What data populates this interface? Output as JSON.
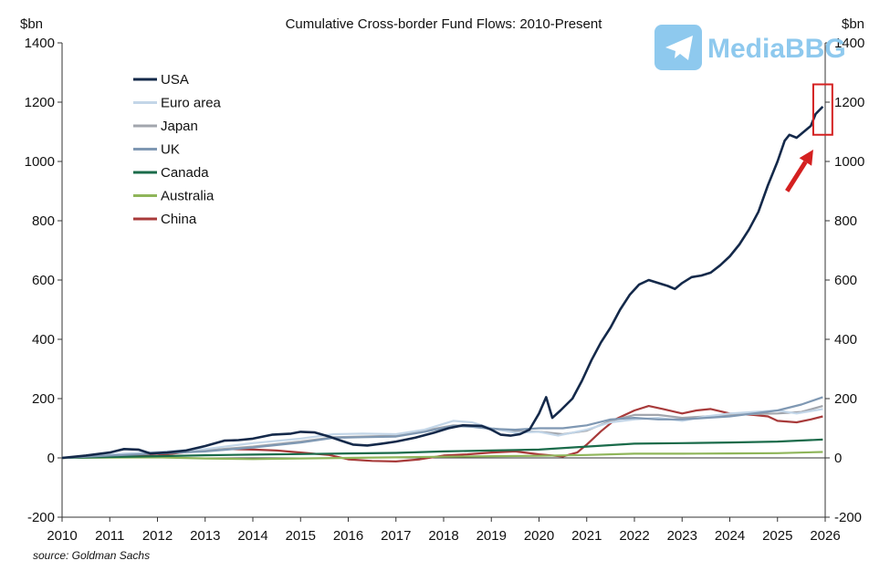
{
  "chart_data": {
    "type": "line",
    "title": "Cumulative Cross-border Fund Flows: 2010-Present",
    "ylabel_left": "$bn",
    "ylabel_right": "$bn",
    "source": "source: Goldman Sachs",
    "xlim": [
      2010,
      2026
    ],
    "ylim": [
      -200,
      1400
    ],
    "x_ticks": [
      "2010",
      "2011",
      "2012",
      "2013",
      "2014",
      "2015",
      "2016",
      "2017",
      "2018",
      "2019",
      "2020",
      "2021",
      "2022",
      "2023",
      "2024",
      "2025",
      "2026"
    ],
    "y_ticks": [
      "-200",
      "0",
      "200",
      "400",
      "600",
      "800",
      "1000",
      "1200",
      "1400"
    ],
    "legend_position": "top-left",
    "series": [
      {
        "name": "USA",
        "color": "#14294a",
        "points": [
          [
            2010,
            0
          ],
          [
            2010.5,
            8
          ],
          [
            2011,
            18
          ],
          [
            2011.3,
            30
          ],
          [
            2011.6,
            28
          ],
          [
            2011.85,
            15
          ],
          [
            2012.2,
            18
          ],
          [
            2012.6,
            25
          ],
          [
            2013,
            40
          ],
          [
            2013.4,
            58
          ],
          [
            2013.7,
            60
          ],
          [
            2014,
            65
          ],
          [
            2014.4,
            78
          ],
          [
            2014.8,
            82
          ],
          [
            2015,
            88
          ],
          [
            2015.3,
            86
          ],
          [
            2015.6,
            72
          ],
          [
            2015.85,
            58
          ],
          [
            2016.1,
            45
          ],
          [
            2016.4,
            42
          ],
          [
            2016.7,
            48
          ],
          [
            2017,
            55
          ],
          [
            2017.4,
            68
          ],
          [
            2017.8,
            85
          ],
          [
            2018.1,
            100
          ],
          [
            2018.4,
            110
          ],
          [
            2018.8,
            108
          ],
          [
            2019,
            95
          ],
          [
            2019.2,
            78
          ],
          [
            2019.4,
            75
          ],
          [
            2019.6,
            80
          ],
          [
            2019.8,
            95
          ],
          [
            2020,
            150
          ],
          [
            2020.15,
            205
          ],
          [
            2020.28,
            135
          ],
          [
            2020.45,
            160
          ],
          [
            2020.7,
            200
          ],
          [
            2020.9,
            260
          ],
          [
            2021.1,
            330
          ],
          [
            2021.3,
            390
          ],
          [
            2021.5,
            440
          ],
          [
            2021.7,
            500
          ],
          [
            2021.9,
            550
          ],
          [
            2022.1,
            585
          ],
          [
            2022.3,
            600
          ],
          [
            2022.5,
            590
          ],
          [
            2022.7,
            580
          ],
          [
            2022.85,
            570
          ],
          [
            2023,
            590
          ],
          [
            2023.2,
            610
          ],
          [
            2023.4,
            615
          ],
          [
            2023.6,
            625
          ],
          [
            2023.8,
            650
          ],
          [
            2024,
            680
          ],
          [
            2024.2,
            720
          ],
          [
            2024.4,
            770
          ],
          [
            2024.6,
            830
          ],
          [
            2024.8,
            920
          ],
          [
            2025,
            1000
          ],
          [
            2025.15,
            1070
          ],
          [
            2025.25,
            1090
          ],
          [
            2025.4,
            1080
          ],
          [
            2025.55,
            1100
          ],
          [
            2025.7,
            1120
          ],
          [
            2025.8,
            1160
          ],
          [
            2025.95,
            1185
          ]
        ]
      },
      {
        "name": "Euro area",
        "color": "#c3d6e8",
        "points": [
          [
            2010,
            0
          ],
          [
            2011,
            12
          ],
          [
            2012,
            20
          ],
          [
            2013,
            30
          ],
          [
            2014,
            50
          ],
          [
            2015,
            65
          ],
          [
            2015.7,
            80
          ],
          [
            2016.3,
            82
          ],
          [
            2017,
            80
          ],
          [
            2017.6,
            95
          ],
          [
            2018.2,
            125
          ],
          [
            2018.6,
            120
          ],
          [
            2019,
            100
          ],
          [
            2019.5,
            85
          ],
          [
            2020,
            88
          ],
          [
            2020.4,
            75
          ],
          [
            2021,
            95
          ],
          [
            2021.5,
            120
          ],
          [
            2022,
            130
          ],
          [
            2022.5,
            135
          ],
          [
            2023,
            125
          ],
          [
            2023.5,
            140
          ],
          [
            2024,
            150
          ],
          [
            2024.5,
            155
          ],
          [
            2025,
            160
          ],
          [
            2025.4,
            150
          ],
          [
            2025.95,
            165
          ]
        ]
      },
      {
        "name": "Japan",
        "color": "#a2a6ad",
        "points": [
          [
            2010,
            0
          ],
          [
            2011,
            10
          ],
          [
            2012,
            18
          ],
          [
            2013,
            25
          ],
          [
            2014,
            38
          ],
          [
            2015,
            55
          ],
          [
            2015.7,
            70
          ],
          [
            2016.3,
            72
          ],
          [
            2017,
            75
          ],
          [
            2017.6,
            92
          ],
          [
            2018.2,
            110
          ],
          [
            2018.6,
            108
          ],
          [
            2019,
            100
          ],
          [
            2019.5,
            90
          ],
          [
            2020,
            88
          ],
          [
            2020.5,
            80
          ],
          [
            2021,
            92
          ],
          [
            2021.5,
            125
          ],
          [
            2022,
            145
          ],
          [
            2022.5,
            145
          ],
          [
            2023,
            135
          ],
          [
            2023.5,
            140
          ],
          [
            2024,
            145
          ],
          [
            2024.5,
            148
          ],
          [
            2025,
            150
          ],
          [
            2025.5,
            155
          ],
          [
            2025.95,
            175
          ]
        ]
      },
      {
        "name": "UK",
        "color": "#7f98b3",
        "points": [
          [
            2010,
            0
          ],
          [
            2011,
            8
          ],
          [
            2012,
            15
          ],
          [
            2013,
            22
          ],
          [
            2014,
            35
          ],
          [
            2015,
            52
          ],
          [
            2015.7,
            68
          ],
          [
            2016.3,
            70
          ],
          [
            2017,
            72
          ],
          [
            2017.6,
            88
          ],
          [
            2018.2,
            108
          ],
          [
            2018.6,
            105
          ],
          [
            2019,
            98
          ],
          [
            2019.5,
            95
          ],
          [
            2020,
            100
          ],
          [
            2020.5,
            100
          ],
          [
            2021,
            110
          ],
          [
            2021.5,
            130
          ],
          [
            2022,
            135
          ],
          [
            2022.5,
            130
          ],
          [
            2023,
            130
          ],
          [
            2023.5,
            135
          ],
          [
            2024,
            140
          ],
          [
            2024.5,
            150
          ],
          [
            2025,
            160
          ],
          [
            2025.5,
            180
          ],
          [
            2025.95,
            205
          ]
        ]
      },
      {
        "name": "Canada",
        "color": "#1a6b4a",
        "points": [
          [
            2010,
            0
          ],
          [
            2011,
            3
          ],
          [
            2012,
            6
          ],
          [
            2013,
            9
          ],
          [
            2014,
            11
          ],
          [
            2015,
            13
          ],
          [
            2016,
            15
          ],
          [
            2017,
            17
          ],
          [
            2018,
            22
          ],
          [
            2019,
            25
          ],
          [
            2020,
            28
          ],
          [
            2021,
            38
          ],
          [
            2022,
            48
          ],
          [
            2023,
            50
          ],
          [
            2024,
            52
          ],
          [
            2025,
            55
          ],
          [
            2025.95,
            62
          ]
        ]
      },
      {
        "name": "Australia",
        "color": "#8fb55a",
        "points": [
          [
            2010,
            0
          ],
          [
            2011,
            1
          ],
          [
            2012,
            2
          ],
          [
            2013,
            -2
          ],
          [
            2014,
            -4
          ],
          [
            2015,
            -2
          ],
          [
            2016,
            0
          ],
          [
            2017,
            2
          ],
          [
            2018,
            4
          ],
          [
            2019,
            6
          ],
          [
            2020,
            7
          ],
          [
            2021,
            10
          ],
          [
            2022,
            14
          ],
          [
            2023,
            14
          ],
          [
            2024,
            15
          ],
          [
            2025,
            16
          ],
          [
            2025.95,
            20
          ]
        ]
      },
      {
        "name": "China",
        "color": "#a83a3a",
        "points": [
          [
            2010,
            0
          ],
          [
            2011,
            5
          ],
          [
            2012,
            8
          ],
          [
            2012.5,
            18
          ],
          [
            2013,
            25
          ],
          [
            2013.5,
            30
          ],
          [
            2014,
            28
          ],
          [
            2014.5,
            25
          ],
          [
            2015,
            18
          ],
          [
            2015.6,
            10
          ],
          [
            2016,
            -5
          ],
          [
            2016.5,
            -10
          ],
          [
            2017,
            -12
          ],
          [
            2017.5,
            -5
          ],
          [
            2018,
            8
          ],
          [
            2018.5,
            12
          ],
          [
            2019,
            18
          ],
          [
            2019.5,
            22
          ],
          [
            2020,
            12
          ],
          [
            2020.5,
            5
          ],
          [
            2020.8,
            18
          ],
          [
            2021,
            45
          ],
          [
            2021.3,
            90
          ],
          [
            2021.6,
            130
          ],
          [
            2022,
            160
          ],
          [
            2022.3,
            175
          ],
          [
            2022.6,
            165
          ],
          [
            2023,
            150
          ],
          [
            2023.3,
            160
          ],
          [
            2023.6,
            165
          ],
          [
            2024,
            150
          ],
          [
            2024.5,
            145
          ],
          [
            2024.8,
            140
          ],
          [
            2025,
            125
          ],
          [
            2025.4,
            120
          ],
          [
            2025.7,
            130
          ],
          [
            2025.95,
            140
          ]
        ]
      }
    ],
    "annotations": [
      {
        "type": "box",
        "x_range": [
          2025.75,
          2026.15
        ],
        "y_range": [
          1090,
          1260
        ],
        "color": "#d42020"
      },
      {
        "type": "arrow",
        "from": [
          2025.2,
          900
        ],
        "to": [
          2025.75,
          1040
        ],
        "color": "#d42020"
      }
    ]
  },
  "watermark": {
    "text": "MediaBBG",
    "icon": "telegram-plane-icon",
    "color": "#8ec9ee"
  }
}
